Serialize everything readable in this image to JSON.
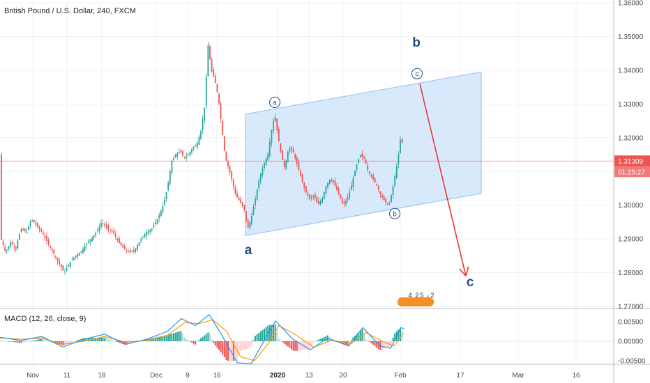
{
  "chart_data": {
    "type": "candlestick",
    "title": "British Pound / U.S. Dollar, 240, FXCM",
    "price_axis": {
      "ylim": [
        1.27,
        1.36
      ],
      "ticks": [
        "1.36000",
        "1.35000",
        "1.34000",
        "1.33000",
        "1.32000",
        "1.31000",
        "1.30000",
        "1.29000",
        "1.28000",
        "1.27000"
      ],
      "tick_values": [
        1.36,
        1.35,
        1.34,
        1.33,
        1.32,
        1.31,
        1.3,
        1.29,
        1.28,
        1.27
      ],
      "last_price_label": "1.31309",
      "last_price": 1.31309,
      "countdown_label": "01:25:27"
    },
    "time_axis": {
      "labels": [
        "Nov",
        "11",
        "18",
        "Dec",
        "9",
        "16",
        "2020",
        "13",
        "20",
        "Feb",
        "17",
        "Mar",
        "16"
      ],
      "label_x": [
        47,
        96,
        146,
        224,
        269,
        311,
        398,
        443,
        492,
        574,
        660,
        743,
        826
      ]
    },
    "price_path": [
      [
        0,
        1.291
      ],
      [
        8,
        1.286
      ],
      [
        15,
        1.289
      ],
      [
        22,
        1.287
      ],
      [
        30,
        1.293
      ],
      [
        38,
        1.292
      ],
      [
        45,
        1.296
      ],
      [
        52,
        1.294
      ],
      [
        60,
        1.292
      ],
      [
        68,
        1.289
      ],
      [
        76,
        1.286
      ],
      [
        84,
        1.283
      ],
      [
        92,
        1.28
      ],
      [
        100,
        1.283
      ],
      [
        108,
        1.285
      ],
      [
        115,
        1.286
      ],
      [
        122,
        1.288
      ],
      [
        130,
        1.29
      ],
      [
        138,
        1.292
      ],
      [
        146,
        1.295
      ],
      [
        154,
        1.293
      ],
      [
        162,
        1.292
      ],
      [
        170,
        1.289
      ],
      [
        178,
        1.287
      ],
      [
        186,
        1.286
      ],
      [
        194,
        1.287
      ],
      [
        202,
        1.29
      ],
      [
        210,
        1.292
      ],
      [
        218,
        1.293
      ],
      [
        226,
        1.296
      ],
      [
        234,
        1.3
      ],
      [
        240,
        1.305
      ],
      [
        246,
        1.313
      ],
      [
        252,
        1.315
      ],
      [
        258,
        1.316
      ],
      [
        264,
        1.314
      ],
      [
        270,
        1.315
      ],
      [
        276,
        1.317
      ],
      [
        282,
        1.318
      ],
      [
        288,
        1.322
      ],
      [
        294,
        1.33
      ],
      [
        298,
        1.348
      ],
      [
        303,
        1.34
      ],
      [
        308,
        1.337
      ],
      [
        313,
        1.332
      ],
      [
        318,
        1.323
      ],
      [
        323,
        1.314
      ],
      [
        328,
        1.311
      ],
      [
        333,
        1.307
      ],
      [
        338,
        1.303
      ],
      [
        344,
        1.301
      ],
      [
        350,
        1.299
      ],
      [
        355,
        1.293
      ],
      [
        360,
        1.296
      ],
      [
        366,
        1.302
      ],
      [
        372,
        1.308
      ],
      [
        378,
        1.312
      ],
      [
        384,
        1.315
      ],
      [
        390,
        1.323
      ],
      [
        394,
        1.327
      ],
      [
        398,
        1.321
      ],
      [
        403,
        1.315
      ],
      [
        408,
        1.311
      ],
      [
        414,
        1.317
      ],
      [
        420,
        1.316
      ],
      [
        426,
        1.312
      ],
      [
        432,
        1.308
      ],
      [
        438,
        1.304
      ],
      [
        444,
        1.302
      ],
      [
        450,
        1.303
      ],
      [
        456,
        1.3
      ],
      [
        462,
        1.302
      ],
      [
        468,
        1.306
      ],
      [
        474,
        1.308
      ],
      [
        480,
        1.306
      ],
      [
        486,
        1.303
      ],
      [
        492,
        1.3
      ],
      [
        498,
        1.302
      ],
      [
        504,
        1.306
      ],
      [
        510,
        1.311
      ],
      [
        516,
        1.315
      ],
      [
        522,
        1.314
      ],
      [
        528,
        1.31
      ],
      [
        534,
        1.308
      ],
      [
        540,
        1.306
      ],
      [
        546,
        1.303
      ],
      [
        552,
        1.301
      ],
      [
        558,
        1.3
      ],
      [
        564,
        1.306
      ],
      [
        570,
        1.313
      ],
      [
        575,
        1.321
      ],
      [
        579,
        1.315
      ]
    ],
    "channel": {
      "upper_start": [
        352,
        1.327
      ],
      "upper_end": [
        690,
        1.3395
      ],
      "lower_start": [
        352,
        1.291
      ],
      "lower_end": [
        690,
        1.3035
      ]
    },
    "horizontal_line_price": 1.31309,
    "projection_arrow": {
      "from": [
        602,
        1.336
      ],
      "to": [
        668,
        1.279
      ]
    },
    "wave_labels": [
      {
        "text": "a",
        "kind": "big",
        "x": 356,
        "price": 1.2855
      },
      {
        "text": "b",
        "kind": "big",
        "x": 597,
        "price": 1.347
      },
      {
        "text": "c",
        "kind": "big",
        "x": 674,
        "price": 1.276
      },
      {
        "text": "a",
        "kind": "circle",
        "x": 394,
        "price": 1.3305
      },
      {
        "text": "b",
        "kind": "circle",
        "x": 566,
        "price": 1.2975
      },
      {
        "text": "c",
        "kind": "circle",
        "x": 598,
        "price": 1.339
      }
    ],
    "event_tags": [
      {
        "text": "4",
        "x": 588
      },
      {
        "text": "2",
        "x": 598
      },
      {
        "text": "5",
        "x": 605
      },
      {
        "text": "↓",
        "x": 614
      },
      {
        "text": "2",
        "x": 620
      }
    ],
    "macd": {
      "label": "MACD (12, 26, close, 9)",
      "ylim": [
        -0.007,
        0.007
      ],
      "ticks": [
        "0.00500",
        "0.00000",
        "-0.00500"
      ],
      "tick_values": [
        0.005,
        0.0,
        -0.005
      ],
      "macd_path": [
        [
          0,
          0.001
        ],
        [
          30,
          0.0002
        ],
        [
          60,
          0.0012
        ],
        [
          90,
          -0.0015
        ],
        [
          120,
          0.0005
        ],
        [
          150,
          0.0018
        ],
        [
          180,
          -0.0008
        ],
        [
          210,
          0.0005
        ],
        [
          240,
          0.0025
        ],
        [
          260,
          0.0058
        ],
        [
          280,
          0.004
        ],
        [
          300,
          0.0068
        ],
        [
          320,
          0.001
        ],
        [
          340,
          -0.0055
        ],
        [
          360,
          -0.0058
        ],
        [
          380,
          0.0005
        ],
        [
          395,
          0.0052
        ],
        [
          420,
          0.0005
        ],
        [
          445,
          -0.0022
        ],
        [
          470,
          0.0008
        ],
        [
          500,
          -0.0012
        ],
        [
          520,
          0.0035
        ],
        [
          545,
          -0.0012
        ],
        [
          560,
          -0.0018
        ],
        [
          575,
          0.0035
        ],
        [
          579,
          0.0032
        ]
      ],
      "signal_path": [
        [
          0,
          0.0008
        ],
        [
          30,
          0.0005
        ],
        [
          60,
          0.0008
        ],
        [
          90,
          -0.0008
        ],
        [
          120,
          0.0
        ],
        [
          150,
          0.0012
        ],
        [
          180,
          -0.0002
        ],
        [
          210,
          0.0002
        ],
        [
          240,
          0.0015
        ],
        [
          265,
          0.0048
        ],
        [
          285,
          0.0045
        ],
        [
          305,
          0.0055
        ],
        [
          325,
          0.0025
        ],
        [
          345,
          -0.004
        ],
        [
          365,
          -0.005
        ],
        [
          385,
          -0.0005
        ],
        [
          400,
          0.004
        ],
        [
          425,
          0.0015
        ],
        [
          450,
          -0.0015
        ],
        [
          475,
          0.0002
        ],
        [
          505,
          -0.0005
        ],
        [
          525,
          0.0022
        ],
        [
          550,
          -0.0002
        ],
        [
          565,
          -0.0012
        ],
        [
          579,
          0.0022
        ]
      ]
    },
    "colors": {
      "up": "#26a69a",
      "down": "#ef5350",
      "channel_fill": "#cfe3fb",
      "channel_stroke": "#90bff2",
      "arrow": "#e33b2f",
      "wave_text": "#1d4e7e",
      "macd_line": "#2196f3",
      "signal_line": "#ff9800",
      "price_line": "#ef5350",
      "tag_bg": "#f57c00"
    }
  }
}
